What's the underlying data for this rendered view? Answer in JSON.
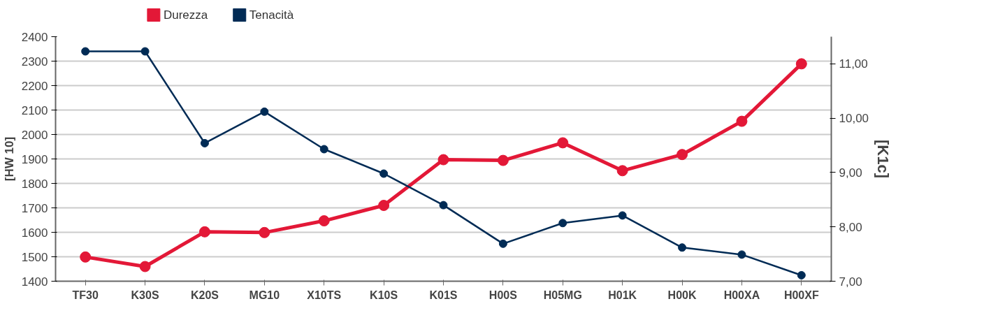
{
  "chart_data": {
    "type": "line",
    "categories": [
      "TF30",
      "K30S",
      "K20S",
      "MG10",
      "X10TS",
      "K10S",
      "K01S",
      "H00S",
      "H05MG",
      "H01K",
      "H00K",
      "H00XA",
      "H00XF"
    ],
    "series": [
      {
        "name": "Durezza",
        "color": "#e31837",
        "values": [
          1499,
          1460,
          1602,
          1599,
          1647,
          1710,
          1897,
          1894,
          1966,
          1852,
          1918,
          2054,
          2289
        ]
      },
      {
        "name": "Tenacità",
        "color": "#002b55",
        "axis": "y2",
        "values": [
          11.23,
          11.23,
          9.54,
          10.12,
          9.43,
          8.98,
          8.4,
          7.69,
          8.07,
          8.21,
          7.62,
          7.49,
          7.11
        ]
      }
    ],
    "ylabel": "[HW 10]",
    "y2label": "[K1c]",
    "ylim": [
      1400,
      2400
    ],
    "yticks": [
      1400,
      1500,
      1600,
      1700,
      1800,
      1900,
      2000,
      2100,
      2200,
      2300,
      2400
    ],
    "y2lim": [
      7,
      11.5
    ],
    "y2ticks": [
      {
        "value": 7,
        "label": "7,00"
      },
      {
        "value": 8,
        "label": "8,00"
      },
      {
        "value": 9,
        "label": "9,00"
      },
      {
        "value": 10,
        "label": "10,00"
      },
      {
        "value": 11,
        "label": "11,00"
      }
    ],
    "grid": "y",
    "legend": "top left",
    "marker": "circle",
    "line_style": "solid"
  }
}
